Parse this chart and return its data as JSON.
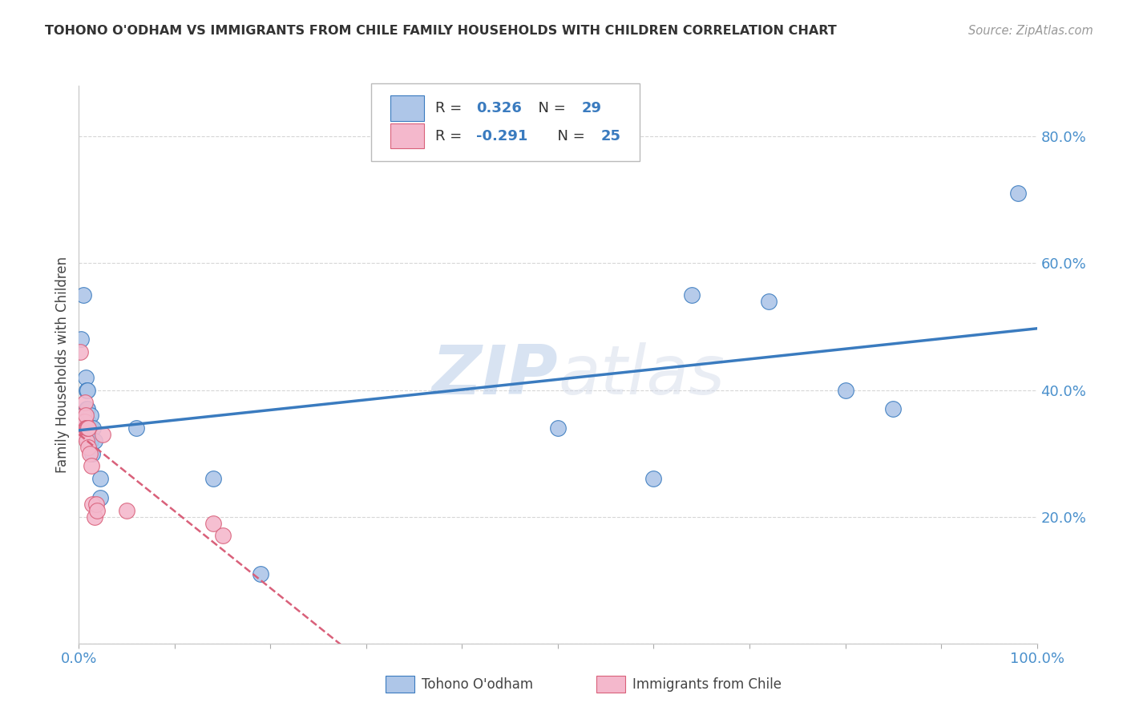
{
  "title": "TOHONO O'ODHAM VS IMMIGRANTS FROM CHILE FAMILY HOUSEHOLDS WITH CHILDREN CORRELATION CHART",
  "source": "Source: ZipAtlas.com",
  "ylabel": "Family Households with Children",
  "blue_label": "Tohono O'odham",
  "pink_label": "Immigrants from Chile",
  "blue_R": "0.326",
  "blue_N": "29",
  "pink_R": "-0.291",
  "pink_N": "25",
  "blue_color": "#aec6e8",
  "pink_color": "#f4b8cc",
  "blue_line_color": "#3a7bbf",
  "pink_line_color": "#d9607a",
  "watermark_color": "#d0dff0",
  "xlim": [
    0.0,
    1.0
  ],
  "ylim": [
    0.0,
    0.88
  ],
  "y_ticks": [
    0.0,
    0.2,
    0.4,
    0.6,
    0.8
  ],
  "y_tick_labels": [
    "",
    "20.0%",
    "40.0%",
    "60.0%",
    "80.0%"
  ],
  "background_color": "#ffffff",
  "grid_color": "#cccccc",
  "blue_x": [
    0.002,
    0.005,
    0.007,
    0.008,
    0.008,
    0.009,
    0.009,
    0.01,
    0.01,
    0.011,
    0.011,
    0.012,
    0.012,
    0.013,
    0.014,
    0.015,
    0.016,
    0.022,
    0.022,
    0.06,
    0.14,
    0.19,
    0.5,
    0.6,
    0.64,
    0.72,
    0.8,
    0.85,
    0.98
  ],
  "blue_y": [
    0.48,
    0.55,
    0.42,
    0.4,
    0.37,
    0.4,
    0.37,
    0.35,
    0.32,
    0.34,
    0.32,
    0.36,
    0.32,
    0.34,
    0.3,
    0.34,
    0.32,
    0.26,
    0.23,
    0.34,
    0.26,
    0.11,
    0.34,
    0.26,
    0.55,
    0.54,
    0.4,
    0.37,
    0.71
  ],
  "pink_x": [
    0.001,
    0.002,
    0.003,
    0.004,
    0.005,
    0.005,
    0.006,
    0.006,
    0.007,
    0.007,
    0.008,
    0.008,
    0.009,
    0.01,
    0.01,
    0.011,
    0.013,
    0.014,
    0.016,
    0.018,
    0.019,
    0.025,
    0.05,
    0.14,
    0.15
  ],
  "pink_y": [
    0.46,
    0.34,
    0.34,
    0.33,
    0.36,
    0.35,
    0.38,
    0.35,
    0.36,
    0.34,
    0.34,
    0.32,
    0.34,
    0.34,
    0.31,
    0.3,
    0.28,
    0.22,
    0.2,
    0.22,
    0.21,
    0.33,
    0.21,
    0.19,
    0.17
  ]
}
